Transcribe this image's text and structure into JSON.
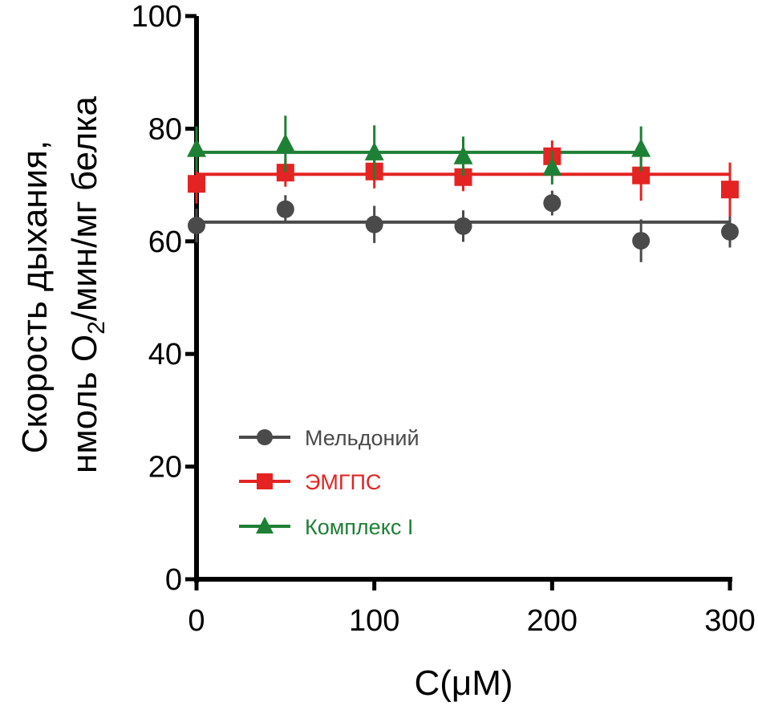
{
  "chart_data": {
    "type": "scatter",
    "title": "",
    "xlabel": "C(μM)",
    "ylabel_line1": "Скорость дыхания,",
    "ylabel_line2_prefix": "нмоль O",
    "ylabel_line2_sub": "2",
    "ylabel_line2_suffix": "/мин/мг белка",
    "xlim": [
      0,
      300
    ],
    "ylim": [
      0,
      100
    ],
    "xticks": [
      0,
      100,
      200,
      300
    ],
    "xticks_minor": [
      50,
      150,
      250
    ],
    "yticks": [
      0,
      20,
      40,
      60,
      80,
      100
    ],
    "grid": false,
    "legend_position": "lower-left-inside",
    "series": [
      {
        "name": "Мельдоний",
        "color": "#4a4a4a",
        "marker": "circle",
        "x": [
          0,
          50,
          100,
          150,
          200,
          250,
          300
        ],
        "y": [
          62.8,
          65.7,
          63.0,
          62.7,
          66.8,
          60.1,
          61.7
        ],
        "err": [
          3.0,
          2.5,
          3.3,
          2.8,
          2.2,
          3.8,
          2.8
        ],
        "fit_mean": 63.4,
        "fit_range": [
          0,
          300
        ]
      },
      {
        "name": "ЭМГПС",
        "color": "#e32422",
        "marker": "square",
        "x": [
          0,
          50,
          100,
          150,
          200,
          250,
          300
        ],
        "y": [
          70.2,
          72.2,
          72.4,
          71.4,
          75.1,
          71.7,
          69.2
        ],
        "err": [
          3.5,
          2.5,
          3.0,
          2.5,
          2.8,
          4.5,
          4.8
        ],
        "fit_mean": 71.9,
        "fit_range": [
          0,
          300
        ]
      },
      {
        "name": "Комплекс I",
        "color": "#1e8034",
        "marker": "triangle",
        "x": [
          0,
          50,
          100,
          150,
          200,
          250
        ],
        "y": [
          76.4,
          77.3,
          75.8,
          75.1,
          73.1,
          76.4
        ],
        "err": [
          4.0,
          5.0,
          4.8,
          3.5,
          3.0,
          4.0
        ],
        "fit_mean": 75.8,
        "fit_range": [
          0,
          250
        ]
      }
    ]
  }
}
